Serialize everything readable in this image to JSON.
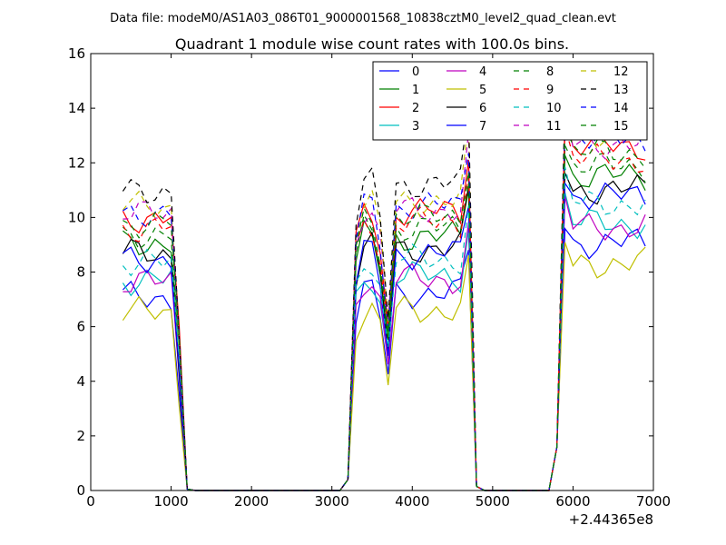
{
  "header": {
    "data_file": "Data file: modeM0/AS1A03_086T01_9000001568_10838cztM0_level2_quad_clean.evt"
  },
  "chart_data": {
    "type": "line",
    "title": "Quadrant 1 module wise count rates with 100.0s bins.",
    "xlabel": "",
    "ylabel": "",
    "x_offset_label": "+2.44365e8",
    "xlim": [
      0,
      7000
    ],
    "ylim": [
      0,
      16
    ],
    "xticks": [
      0,
      1000,
      2000,
      3000,
      4000,
      5000,
      6000,
      7000
    ],
    "yticks": [
      0,
      2,
      4,
      6,
      8,
      10,
      12,
      14,
      16
    ],
    "xtick_labels": [
      "0",
      "1000",
      "2000",
      "3000",
      "4000",
      "5000",
      "6000",
      "7000"
    ],
    "ytick_labels": [
      "0",
      "2",
      "4",
      "6",
      "8",
      "10",
      "12",
      "14",
      "16"
    ],
    "grid": false,
    "legend_position": "top-right",
    "legend_columns": 4,
    "x": [
      400,
      500,
      600,
      700,
      800,
      900,
      1000,
      1100,
      1200,
      1300,
      1400,
      1500,
      1600,
      1700,
      1800,
      1900,
      2000,
      2100,
      2200,
      2300,
      2400,
      2500,
      2600,
      2700,
      2800,
      2900,
      3000,
      3100,
      3200,
      3300,
      3400,
      3500,
      3600,
      3700,
      3800,
      3900,
      4000,
      4100,
      4200,
      4300,
      4400,
      4500,
      4600,
      4700,
      4800,
      4900,
      5000,
      5100,
      5200,
      5300,
      5400,
      5500,
      5600,
      5700,
      5800,
      5900,
      6000,
      6100,
      6200,
      6300,
      6400,
      6500,
      6600,
      6700,
      6800,
      6900
    ],
    "on_intervals": [
      [
        400,
        1100
      ],
      [
        3300,
        4700
      ],
      [
        5900,
        6900
      ]
    ],
    "series": [
      {
        "name": "0",
        "color": "#0000ff",
        "dash": false,
        "base": 7.1
      },
      {
        "name": "1",
        "color": "#008000",
        "dash": false,
        "base": 9.1
      },
      {
        "name": "2",
        "color": "#ff0000",
        "dash": false,
        "base": 10.0
      },
      {
        "name": "3",
        "color": "#00bfbf",
        "dash": false,
        "base": 7.7
      },
      {
        "name": "4",
        "color": "#bf00bf",
        "dash": false,
        "base": 7.6
      },
      {
        "name": "5",
        "color": "#bfbf00",
        "dash": false,
        "base": 6.5
      },
      {
        "name": "6",
        "color": "#000000",
        "dash": false,
        "base": 8.7
      },
      {
        "name": "7",
        "color": "#0000ff",
        "dash": false,
        "base": 8.5
      },
      {
        "name": "8",
        "color": "#008000",
        "dash": true,
        "base": 9.4
      },
      {
        "name": "9",
        "color": "#ff0000",
        "dash": true,
        "base": 9.6
      },
      {
        "name": "10",
        "color": "#00bfbf",
        "dash": true,
        "base": 8.3
      },
      {
        "name": "11",
        "color": "#bf00bf",
        "dash": true,
        "base": 10.1
      },
      {
        "name": "12",
        "color": "#bfbf00",
        "dash": true,
        "base": 10.4
      },
      {
        "name": "13",
        "color": "#000000",
        "dash": true,
        "base": 11.0
      },
      {
        "name": "14",
        "color": "#0000ff",
        "dash": true,
        "base": 10.2
      },
      {
        "name": "15",
        "color": "#008000",
        "dash": true,
        "base": 9.8
      }
    ]
  }
}
